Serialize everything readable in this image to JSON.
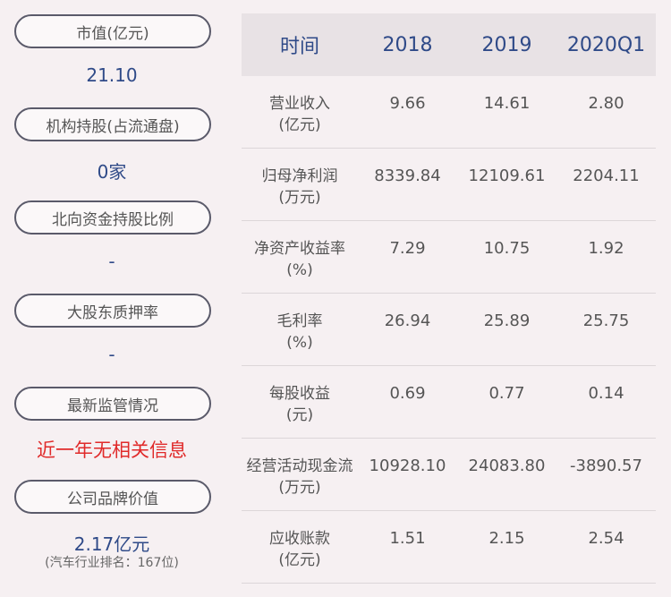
{
  "left": {
    "items": [
      {
        "label": "市值(亿元)",
        "value": "21.10"
      },
      {
        "label": "机构持股(占流通盘)",
        "value": "0家"
      },
      {
        "label": "北向资金持股比例",
        "value": "-"
      },
      {
        "label": "大股东质押率",
        "value": "-"
      },
      {
        "label": "最新监管情况",
        "value": "近一年无相关信息"
      },
      {
        "label": "公司品牌价值",
        "value": "2.17亿元",
        "note": "(汽车行业排名：167位)"
      }
    ]
  },
  "table": {
    "headers": [
      "时间",
      "2018",
      "2019",
      "2020Q1"
    ],
    "rows": [
      {
        "name": "营业收入",
        "unit": "(亿元)",
        "values": [
          "9.66",
          "14.61",
          "2.80"
        ]
      },
      {
        "name": "归母净利润",
        "unit": "(万元)",
        "values": [
          "8339.84",
          "12109.61",
          "2204.11"
        ]
      },
      {
        "name": "净资产收益率",
        "unit": "(%)",
        "values": [
          "7.29",
          "10.75",
          "1.92"
        ]
      },
      {
        "name": "毛利率",
        "unit": "(%)",
        "values": [
          "26.94",
          "25.89",
          "25.75"
        ]
      },
      {
        "name": "每股收益",
        "unit": "(元)",
        "values": [
          "0.69",
          "0.77",
          "0.14"
        ]
      },
      {
        "name": "经营活动现金流",
        "unit": "(万元)",
        "values": [
          "10928.10",
          "24083.80",
          "-3890.57"
        ]
      },
      {
        "name": "应收账款",
        "unit": "(亿元)",
        "values": [
          "1.51",
          "2.15",
          "2.54"
        ]
      }
    ]
  },
  "colors": {
    "background": "#f6f0f2",
    "header_bg": "#e8e2e5",
    "value_blue": "#2f4a88",
    "alert_red": "#e02a2a",
    "pill_border": "#5a5a6a"
  }
}
